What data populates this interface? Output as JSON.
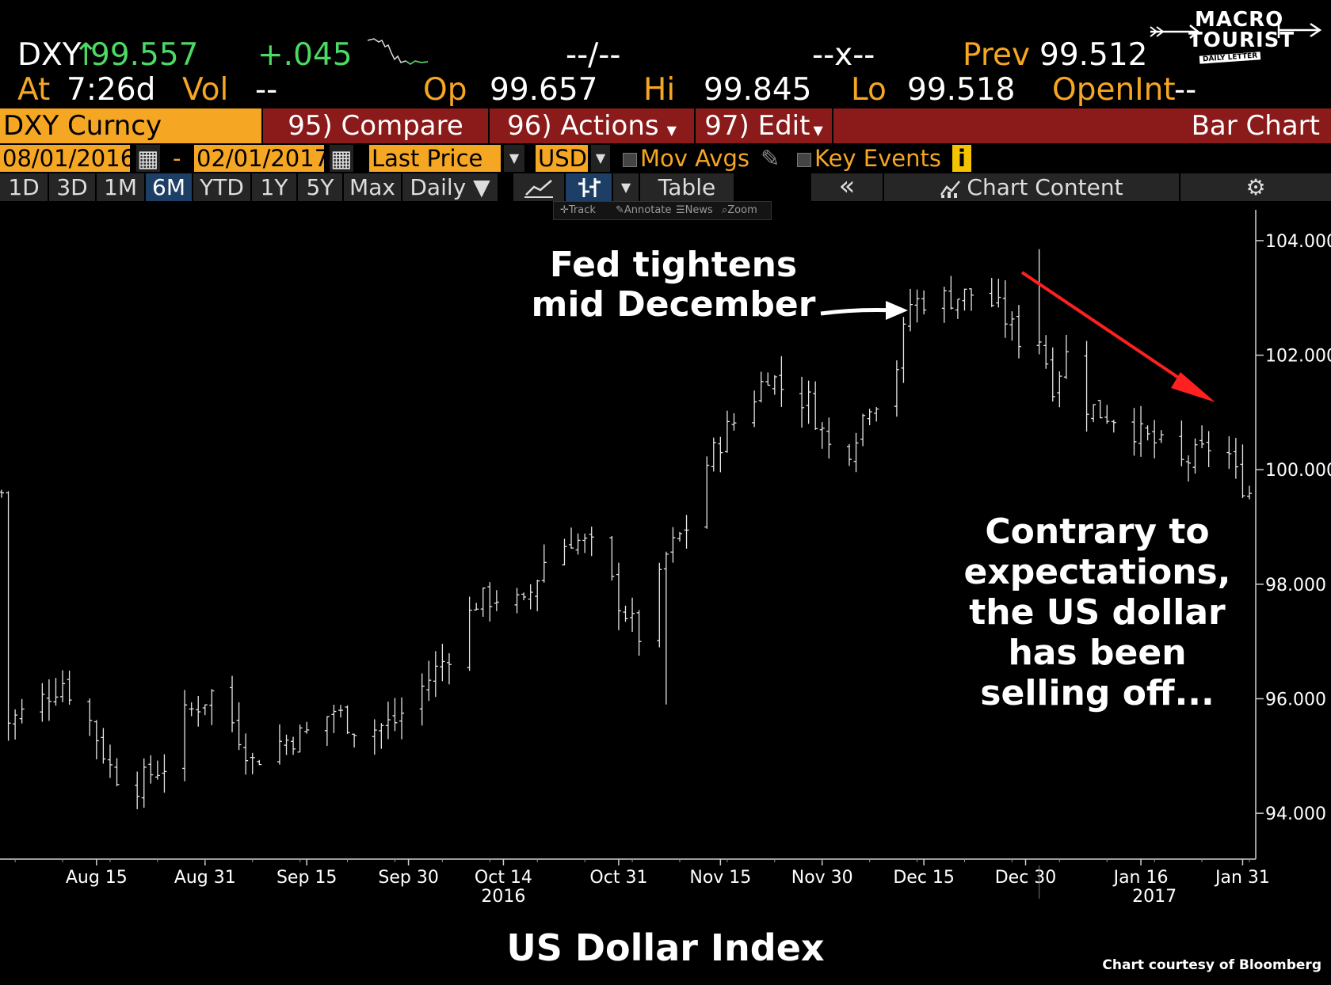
{
  "header": {
    "ticker": "DXY",
    "up_arrow": "↑",
    "last_price": "99.557",
    "change": "+.045",
    "dashes1": "--/--",
    "dashes2": "--x--",
    "prev_label": "Prev",
    "prev_value": "99.512",
    "at_label": "At",
    "at_value": "7:26d",
    "vol_label": "Vol",
    "vol_value": "--",
    "op_label": "Op",
    "op_value": "99.657",
    "hi_label": "Hi",
    "hi_value": "99.845",
    "lo_label": "Lo",
    "lo_value": "99.518",
    "openint_label": "OpenInt",
    "openint_value": "--"
  },
  "logo": {
    "line1": "MACRO",
    "line2": "TOURIST",
    "line3": "DAILY LETTER"
  },
  "function_bar": {
    "security": "DXY Curncy",
    "compare": "95) Compare",
    "actions": "96) Actions",
    "edit": "97) Edit",
    "chart_type": "Bar Chart"
  },
  "controls": {
    "start_date": "08/01/2016",
    "separator": "-",
    "end_date": "02/01/2017",
    "field": "Last Price",
    "currency": "USD",
    "mov_avgs": "Mov Avgs",
    "key_events": "Key Events",
    "info": "i"
  },
  "tabs": {
    "periods": [
      "1D",
      "3D",
      "1M",
      "6M",
      "YTD",
      "1Y",
      "5Y",
      "Max"
    ],
    "selected": "6M",
    "frequency": "Daily ▼",
    "table": "Table",
    "collapse": "«",
    "chart_content": "Chart Content"
  },
  "mini_toolbar": {
    "track": "Track",
    "annotate": "Annotate",
    "news": "News",
    "zoom": "Zoom"
  },
  "chart_data": {
    "type": "bar",
    "subtype": "ohlc",
    "title": "US Dollar Index",
    "ylim": [
      93.2,
      104.4
    ],
    "y_ticks": [
      94,
      96,
      98,
      100,
      102,
      104
    ],
    "y_tick_labels": [
      "94.000",
      "96.000",
      "98.000",
      "100.000",
      "102.000",
      "104.000"
    ],
    "x_tick_labels": [
      {
        "label": "Aug 15",
        "day": 14
      },
      {
        "label": "Aug 31",
        "day": 30
      },
      {
        "label": "Sep 15",
        "day": 45
      },
      {
        "label": "Sep 30",
        "day": 60
      },
      {
        "label": "Oct 14",
        "day": 74
      },
      {
        "label": "Oct 31",
        "day": 91
      },
      {
        "label": "Nov 15",
        "day": 106
      },
      {
        "label": "Nov 30",
        "day": 121
      },
      {
        "label": "Dec 15",
        "day": 136
      },
      {
        "label": "Dec 30",
        "day": 151
      },
      {
        "label": "Jan 16",
        "day": 168
      },
      {
        "label": "Jan 31",
        "day": 183
      }
    ],
    "year_labels": [
      {
        "label": "2016",
        "day": 74
      },
      {
        "label": "2017",
        "day": 170
      }
    ],
    "year_divider_day": 153,
    "x_start_day": 0,
    "x_end_day": 184,
    "anchor_closes": [
      {
        "day": 1,
        "close": 95.6
      },
      {
        "day": 5,
        "close": 95.9
      },
      {
        "day": 9,
        "close": 96.3
      },
      {
        "day": 13,
        "close": 95.6
      },
      {
        "day": 16,
        "close": 94.8
      },
      {
        "day": 19,
        "close": 94.4
      },
      {
        "day": 22,
        "close": 94.7
      },
      {
        "day": 25,
        "close": 94.9
      },
      {
        "day": 27,
        "close": 95.7
      },
      {
        "day": 31,
        "close": 96.1
      },
      {
        "day": 34,
        "close": 95.6
      },
      {
        "day": 37,
        "close": 94.9
      },
      {
        "day": 40,
        "close": 95.2
      },
      {
        "day": 45,
        "close": 95.4
      },
      {
        "day": 49,
        "close": 95.8
      },
      {
        "day": 53,
        "close": 95.4
      },
      {
        "day": 58,
        "close": 95.6
      },
      {
        "day": 62,
        "close": 96.2
      },
      {
        "day": 66,
        "close": 96.8
      },
      {
        "day": 70,
        "close": 97.7
      },
      {
        "day": 74,
        "close": 97.8
      },
      {
        "day": 77,
        "close": 97.6
      },
      {
        "day": 80,
        "close": 98.4
      },
      {
        "day": 84,
        "close": 98.8
      },
      {
        "day": 88,
        "close": 98.6
      },
      {
        "day": 91,
        "close": 97.7
      },
      {
        "day": 94,
        "close": 97.1
      },
      {
        "day": 96,
        "close": 97.6
      },
      {
        "day": 98,
        "close": 98.5
      },
      {
        "day": 101,
        "close": 99.0
      },
      {
        "day": 104,
        "close": 100.1
      },
      {
        "day": 107,
        "close": 100.7
      },
      {
        "day": 110,
        "close": 101.1
      },
      {
        "day": 113,
        "close": 101.7
      },
      {
        "day": 116,
        "close": 101.3
      },
      {
        "day": 119,
        "close": 101.2
      },
      {
        "day": 122,
        "close": 100.4
      },
      {
        "day": 125,
        "close": 100.4
      },
      {
        "day": 128,
        "close": 101.2
      },
      {
        "day": 131,
        "close": 101.3
      },
      {
        "day": 134,
        "close": 102.9
      },
      {
        "day": 137,
        "close": 103.0
      },
      {
        "day": 140,
        "close": 103.0
      },
      {
        "day": 144,
        "close": 103.1
      },
      {
        "day": 147,
        "close": 102.8
      },
      {
        "day": 150,
        "close": 102.3
      },
      {
        "day": 152,
        "close": 102.7
      },
      {
        "day": 155,
        "close": 101.5
      },
      {
        "day": 157,
        "close": 102.0
      },
      {
        "day": 159,
        "close": 101.2
      },
      {
        "day": 162,
        "close": 101.0
      },
      {
        "day": 165,
        "close": 100.9
      },
      {
        "day": 168,
        "close": 100.6
      },
      {
        "day": 171,
        "close": 100.4
      },
      {
        "day": 174,
        "close": 100.1
      },
      {
        "day": 177,
        "close": 100.3
      },
      {
        "day": 180,
        "close": 100.6
      },
      {
        "day": 182,
        "close": 99.9
      },
      {
        "day": 184,
        "close": 99.6
      }
    ],
    "annotations": [
      {
        "text_lines": [
          "Fed tightens",
          "mid December"
        ],
        "arrow_color": "#ffffff"
      },
      {
        "text_lines": [
          "Contrary to",
          "expectations,",
          "the US dollar",
          "has been",
          "selling off..."
        ],
        "arrow_color": "#ff2020"
      }
    ],
    "credit": "Chart courtesy of Bloomberg"
  },
  "colors": {
    "orange": "#f5a623",
    "green": "#4cd964",
    "red_bar": "#8b1a1a",
    "selected_tab": "#1d3f66"
  }
}
